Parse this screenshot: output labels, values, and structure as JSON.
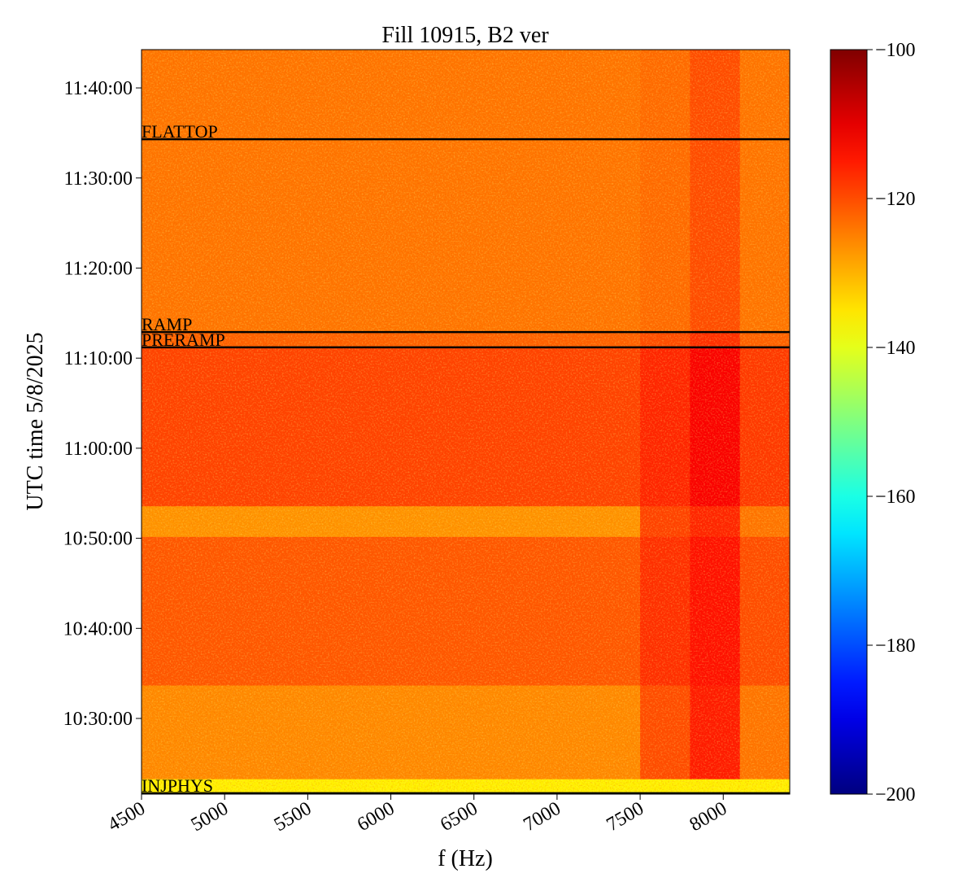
{
  "chart_data": {
    "type": "heatmap",
    "title": "Fill 10915, B2 ver",
    "xlabel": "f (Hz)",
    "ylabel": "UTC time 5/8/2025",
    "xlim": [
      4500,
      8400
    ],
    "ylim": [
      621.6,
      704.25
    ],
    "xticks": [
      4500,
      5000,
      5500,
      6000,
      6500,
      7000,
      7500,
      8000
    ],
    "yticks": [
      {
        "value": 630,
        "label": "10:30:00"
      },
      {
        "value": 640,
        "label": "10:40:00"
      },
      {
        "value": 650,
        "label": "10:50:00"
      },
      {
        "value": 660,
        "label": "11:00:00"
      },
      {
        "value": 670,
        "label": "11:10:00"
      },
      {
        "value": 680,
        "label": "11:20:00"
      },
      {
        "value": 690,
        "label": "11:30:00"
      },
      {
        "value": 700,
        "label": "11:40:00"
      }
    ],
    "x_edges": [
      4500,
      4800,
      5100,
      5400,
      5700,
      6000,
      6300,
      6600,
      6900,
      7200,
      7500,
      7800,
      8100,
      8400
    ],
    "y_edges": [
      621.6,
      623.3,
      633.7,
      650.2,
      653.6,
      671.2,
      672.9,
      704.25
    ],
    "z": [
      [
        -136,
        -136,
        -136,
        -136,
        -136,
        -136,
        -136,
        -136,
        -136,
        -136,
        -136,
        -136,
        -136
      ],
      [
        -126,
        -126,
        -126,
        -126,
        -126,
        -126,
        -126,
        -126,
        -126,
        -126,
        -120,
        -115,
        -124
      ],
      [
        -121,
        -121,
        -121,
        -121,
        -121,
        -121,
        -121,
        -121,
        -121,
        -121,
        -117,
        -114,
        -120
      ],
      [
        -127,
        -127,
        -127,
        -127,
        -127,
        -127,
        -127,
        -127,
        -127,
        -127,
        -119,
        -116,
        -124
      ],
      [
        -119,
        -119,
        -119,
        -119,
        -119,
        -119,
        -119,
        -119,
        -119,
        -119,
        -116,
        -112,
        -118
      ],
      [
        -122,
        -122,
        -122,
        -122,
        -122,
        -122,
        -122,
        -122,
        -122,
        -122,
        -120,
        -117,
        -122
      ],
      [
        -124,
        -124,
        -124,
        -124,
        -124,
        -124,
        -124,
        -124,
        -124,
        -124,
        -123,
        -120,
        -124
      ]
    ],
    "colorbar": {
      "lim": [
        -200,
        -100
      ],
      "colormap": "jet",
      "ticks": [
        {
          "value": -100,
          "label": "−100"
        },
        {
          "value": -120,
          "label": "−120"
        },
        {
          "value": -140,
          "label": "−140"
        },
        {
          "value": -160,
          "label": "−160"
        },
        {
          "value": -180,
          "label": "−180"
        },
        {
          "value": -200,
          "label": "−200"
        }
      ]
    },
    "annotations": [
      {
        "label": "FLATTOP",
        "value": 694.3
      },
      {
        "label": "RAMP",
        "value": 672.9
      },
      {
        "label": "PRERAMP",
        "value": 671.2
      },
      {
        "label": "INJPHYS",
        "value": 621.7
      }
    ]
  }
}
